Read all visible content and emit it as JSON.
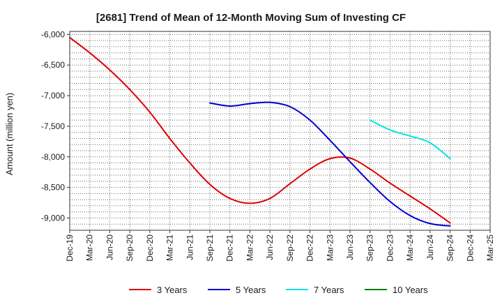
{
  "chart_data": {
    "type": "line",
    "title": "[2681]  Trend of Mean of 12-Month Moving Sum of Investing CF",
    "xlabel": "",
    "ylabel": "Amount (million yen)",
    "ylim": [
      -9200,
      -5950
    ],
    "yticks": [
      -6000,
      -6500,
      -7000,
      -7500,
      -8000,
      -8500,
      -9000
    ],
    "ytick_labels": [
      "-6,000",
      "-6,500",
      "-7,000",
      "-7,500",
      "-8,000",
      "-8,500",
      "-9,000"
    ],
    "categories": [
      "Dec-19",
      "Mar-20",
      "Jun-20",
      "Sep-20",
      "Dec-20",
      "Mar-21",
      "Jun-21",
      "Sep-21",
      "Dec-21",
      "Mar-22",
      "Jun-22",
      "Sep-22",
      "Dec-22",
      "Mar-23",
      "Jun-23",
      "Sep-23",
      "Dec-23",
      "Mar-24",
      "Jun-24",
      "Sep-24",
      "Dec-24",
      "Mar-25"
    ],
    "grid": true,
    "legend_position": "bottom",
    "series": [
      {
        "name": "3 Years",
        "color": "#dd0000",
        "values": [
          -6050,
          -6300,
          -6580,
          -6900,
          -7270,
          -7700,
          -8100,
          -8450,
          -8680,
          -8760,
          -8680,
          -8440,
          -8200,
          -8030,
          -8020,
          -8200,
          -8430,
          -8640,
          -8850,
          -9080,
          null,
          null
        ]
      },
      {
        "name": "5 Years",
        "color": "#0000cc",
        "values": [
          null,
          null,
          null,
          null,
          null,
          null,
          null,
          -7120,
          -7170,
          -7130,
          -7110,
          -7180,
          -7400,
          -7730,
          -8080,
          -8420,
          -8730,
          -8960,
          -9090,
          -9130,
          null,
          null
        ]
      },
      {
        "name": "7 Years",
        "color": "#00e5e5",
        "values": [
          null,
          null,
          null,
          null,
          null,
          null,
          null,
          null,
          null,
          null,
          null,
          null,
          null,
          null,
          null,
          -7400,
          -7560,
          -7660,
          -7770,
          -8030,
          null,
          null
        ]
      },
      {
        "name": "10 Years",
        "color": "#008000",
        "values": [
          null,
          null,
          null,
          null,
          null,
          null,
          null,
          null,
          null,
          null,
          null,
          null,
          null,
          null,
          null,
          null,
          null,
          null,
          null,
          null,
          null,
          null
        ]
      }
    ]
  }
}
